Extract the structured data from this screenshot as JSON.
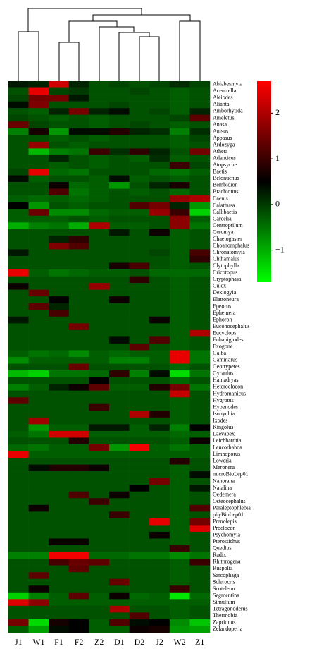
{
  "chart_data": {
    "type": "heatmap",
    "columns": [
      "J1",
      "W1",
      "F1",
      "F2",
      "Z2",
      "D1",
      "D2",
      "J2",
      "W2",
      "Z1"
    ],
    "rows": [
      "Ablabesmyia",
      "Acentrella",
      "Aleiodes",
      "Alianta",
      "Amborhytida",
      "Ameletus",
      "Anasa",
      "Anisus",
      "Appasus",
      "Ardozyga",
      "Atheta",
      "Atlanticus",
      "Atopsyche",
      "Baetis",
      "Belonuchus",
      "Bembidion",
      "Brachionus",
      "Caenis",
      "Calathusa",
      "Callibaetis",
      "Carcelia",
      "Centroptilum",
      "Ceromya",
      "Chaetogaster",
      "Choanomphalus",
      "Chronatomyia",
      "Chthamalus",
      "Clytophylla",
      "Cricotopus",
      "Cryptophasa",
      "Culex",
      "Dexiogyia",
      "Elattoneura",
      "Epeorus",
      "Ephemera",
      "Ephoron",
      "Euconocephalus",
      "Eucyclops",
      "Euhapigiodes",
      "Exogone",
      "Galba",
      "Gammarus",
      "Geotrypetes",
      "Gyraulus",
      "Hamadryas",
      "Heterocloeon",
      "Hydromanicus",
      "Hygrotus",
      "Hypenodes",
      "Isonychia",
      "Ixodes",
      "Kingolus",
      "Laevapex",
      "Leichhardtia",
      "Leucorhabda",
      "Limnoporus",
      "Loweria",
      "Meronera",
      "microBioLep01",
      "Nanorana",
      "Natalina",
      "Oedemera",
      "Osteocephalus",
      "Paraleptophlebia",
      "phyBioLep01",
      "Prenolepis",
      "Procloeon",
      "Psychomyia",
      "Pterostichus",
      "Quedius",
      "Radix",
      "Rhithrogena",
      "Ruspolia",
      "Sarcophaga",
      "Sclerocris",
      "Scoteleon",
      "Segmentina",
      "Simulium",
      "Tetragonoderus",
      "Thermobia",
      "Zaprionus",
      "Zelandoperla"
    ],
    "values": [
      [
        0.3,
        0.2,
        2.3,
        0.2,
        -0.2,
        -0.1,
        -0.2,
        -0.1,
        0.1,
        -0.1
      ],
      [
        -0.2,
        2.5,
        -0.1,
        0,
        -0.2,
        -0.2,
        -0.1,
        -0.2,
        -0.3,
        -0.2
      ],
      [
        -0.1,
        1.5,
        1.5,
        0.3,
        -0.2,
        -0.2,
        -0.2,
        -0.2,
        -0.3,
        -0.2
      ],
      [
        0.4,
        1.6,
        -0.2,
        -0.2,
        -0.2,
        -0.1,
        -0.2,
        -0.2,
        -0.3,
        -0.2
      ],
      [
        -0.2,
        -0.3,
        0.2,
        1.5,
        0.2,
        0.4,
        -0.2,
        -0.1,
        -0.3,
        0.2
      ],
      [
        -0.1,
        -0.2,
        -0.3,
        -0.2,
        -0.3,
        -0.2,
        -0.2,
        -0.2,
        -0.1,
        1.3
      ],
      [
        1.4,
        -0.1,
        -0.2,
        -0.2,
        -0.3,
        -0.2,
        -0.1,
        -0.2,
        -0.3,
        -0.2
      ],
      [
        -0.6,
        0.7,
        -0.8,
        0.4,
        0.4,
        0.8,
        0.2,
        0.1,
        -0.6,
        0.1
      ],
      [
        -0.2,
        -0.2,
        -0.3,
        -0.2,
        -0.3,
        -0.2,
        -0.2,
        -0.2,
        -0.3,
        -0.1
      ],
      [
        -0.2,
        1.8,
        -0.2,
        -0.3,
        -0.2,
        -0.2,
        -0.2,
        -0.2,
        -0.3,
        -0.2
      ],
      [
        -0.2,
        -1.1,
        -0.6,
        -0.5,
        1.0,
        0.1,
        0.9,
        0.2,
        -0.2,
        1.5
      ],
      [
        -0.2,
        -0.2,
        0.2,
        -0.2,
        -0.3,
        -0.2,
        -0.3,
        0.1,
        -0.3,
        -0.2
      ],
      [
        -0.2,
        -0.2,
        -0.3,
        -0.2,
        -0.3,
        -0.2,
        -0.2,
        -0.2,
        1.0,
        -0.1
      ],
      [
        -0.1,
        2.5,
        -0.4,
        -0.5,
        -0.2,
        -0.2,
        -0.2,
        -0.4,
        -0.5,
        -0.3
      ],
      [
        0.4,
        -0.3,
        -0.2,
        -0.2,
        -0.3,
        0.4,
        -0.3,
        -0.2,
        -0.3,
        -0.2
      ],
      [
        -0.2,
        -0.2,
        0.6,
        -0.4,
        -0.3,
        -0.8,
        -0.2,
        0.2,
        0.7,
        -0.2
      ],
      [
        -0.2,
        -0.2,
        1.2,
        -0.5,
        -0.3,
        -0.2,
        -0.3,
        -0.2,
        -0.4,
        -0.2
      ],
      [
        -0.3,
        -0.4,
        -0.3,
        -0.4,
        -0.3,
        -0.2,
        -0.2,
        -0.2,
        1.8,
        2.0
      ],
      [
        0.5,
        -0.8,
        -0.2,
        -0.3,
        -0.2,
        -0.2,
        1.2,
        1.5,
        0.2,
        -0.8
      ],
      [
        -0.3,
        1.4,
        -0.7,
        -0.7,
        -0.4,
        -0.3,
        -0.3,
        1.8,
        1.0,
        -1.3
      ],
      [
        -0.3,
        -0.3,
        -0.3,
        -0.2,
        -0.3,
        -0.2,
        -0.2,
        -0.2,
        1.7,
        -0.3
      ],
      [
        -1.0,
        -0.6,
        -0.5,
        -1.0,
        2.0,
        -0.3,
        -0.3,
        -0.2,
        1.7,
        -0.5
      ],
      [
        -0.2,
        -0.2,
        -0.2,
        -0.2,
        -0.2,
        0.3,
        -0.2,
        0.6,
        -0.3,
        -0.2
      ],
      [
        -0.2,
        -0.2,
        0.2,
        0.9,
        -0.2,
        -0.2,
        -0.2,
        -0.2,
        -0.3,
        -0.2
      ],
      [
        -0.2,
        -0.2,
        1.6,
        1.2,
        -0.2,
        -0.2,
        -0.2,
        -0.2,
        -0.3,
        -0.2
      ],
      [
        0.3,
        -0.2,
        -0.2,
        -0.2,
        -0.2,
        -0.2,
        -0.2,
        -0.1,
        -0.3,
        1.1
      ],
      [
        -0.2,
        -0.2,
        -0.2,
        -0.2,
        -0.2,
        -0.2,
        -0.2,
        -0.2,
        -0.3,
        0.9
      ],
      [
        -0.2,
        -0.2,
        -0.2,
        -0.2,
        -0.2,
        0.7,
        1.1,
        -0.2,
        -0.3,
        -0.2
      ],
      [
        2.5,
        -0.3,
        -0.5,
        -0.4,
        -0.3,
        -0.3,
        -0.2,
        -0.4,
        -0.4,
        -0.4
      ],
      [
        -0.2,
        -0.2,
        -0.2,
        -0.2,
        -0.2,
        -0.2,
        0.9,
        -0.2,
        -0.3,
        -0.2
      ],
      [
        0.6,
        -0.2,
        -0.2,
        -0.2,
        1.8,
        -0.2,
        -0.2,
        -0.2,
        -0.3,
        -0.2
      ],
      [
        -0.2,
        1.4,
        -0.2,
        -0.2,
        -0.2,
        -0.2,
        -0.2,
        -0.2,
        -0.3,
        -0.2
      ],
      [
        -0.2,
        -0.2,
        0.5,
        -0.2,
        -0.2,
        0.6,
        -0.2,
        -0.2,
        -0.3,
        -0.2
      ],
      [
        -0.2,
        1.3,
        0.2,
        -0.2,
        -0.2,
        -0.2,
        -0.2,
        -0.2,
        -0.3,
        -0.2
      ],
      [
        -0.2,
        -0.2,
        1.1,
        -0.2,
        -0.2,
        -0.2,
        -0.2,
        -0.2,
        -0.3,
        -0.2
      ],
      [
        0.3,
        -0.2,
        -0.2,
        -0.2,
        -0.2,
        -0.2,
        -0.2,
        0.6,
        -0.3,
        -0.2
      ],
      [
        -0.2,
        -0.2,
        -0.2,
        1.5,
        -0.2,
        -0.2,
        -0.2,
        -0.2,
        -0.3,
        -0.2
      ],
      [
        -0.2,
        -0.2,
        -0.2,
        -0.2,
        -0.2,
        -0.2,
        -0.2,
        -0.2,
        -0.3,
        2.0
      ],
      [
        -0.2,
        -0.2,
        -0.2,
        -0.2,
        -0.2,
        0.4,
        -0.2,
        1.2,
        -0.3,
        -0.2
      ],
      [
        -0.2,
        -0.2,
        -0.2,
        -0.2,
        -0.2,
        -0.2,
        1.3,
        -0.2,
        -0.3,
        -0.2
      ],
      [
        -0.3,
        -0.5,
        -0.4,
        -0.7,
        -0.3,
        -0.4,
        -0.3,
        -0.3,
        2.5,
        -0.5
      ],
      [
        -0.7,
        -0.3,
        -0.3,
        -0.3,
        -0.3,
        -0.6,
        -0.6,
        -0.3,
        2.5,
        -0.5
      ],
      [
        -0.2,
        -0.2,
        -0.2,
        1.4,
        -0.2,
        -0.2,
        -0.2,
        -0.2,
        -0.4,
        -0.2
      ],
      [
        -1.1,
        -1.3,
        -0.5,
        -0.5,
        -0.4,
        0.9,
        -0.6,
        0.4,
        -1.4,
        -0.5
      ],
      [
        -0.2,
        -0.2,
        -0.2,
        -0.2,
        0.5,
        -0.2,
        -0.2,
        -0.2,
        -0.4,
        -0.2
      ],
      [
        -0.6,
        -0.3,
        0.2,
        0.6,
        1.3,
        -0.3,
        -0.3,
        0.8,
        1.5,
        -0.5
      ],
      [
        -0.2,
        -0.2,
        -0.2,
        -0.2,
        -0.2,
        -0.2,
        -0.2,
        -0.2,
        2.2,
        -0.2
      ],
      [
        1.3,
        -0.2,
        -0.2,
        -0.2,
        -0.2,
        -0.2,
        -0.2,
        -0.2,
        -0.3,
        -0.2
      ],
      [
        -0.2,
        -0.2,
        -0.2,
        -0.2,
        1.0,
        -0.2,
        -0.2,
        -0.2,
        -0.3,
        -0.2
      ],
      [
        -0.2,
        -0.2,
        -0.2,
        -0.2,
        -0.2,
        -0.2,
        2.0,
        0.8,
        -0.3,
        -0.2
      ],
      [
        -0.2,
        1.9,
        -0.2,
        -0.2,
        -0.2,
        -0.2,
        -0.2,
        -0.2,
        -0.3,
        -0.2
      ],
      [
        -0.2,
        -0.8,
        -0.3,
        -0.3,
        0.3,
        0.3,
        -0.3,
        0.2,
        -0.6,
        0.5
      ],
      [
        -0.3,
        -0.5,
        2.3,
        2.3,
        -0.3,
        -0.3,
        -0.3,
        -0.3,
        -0.4,
        -0.3
      ],
      [
        -0.2,
        -0.2,
        -0.2,
        0.8,
        -0.2,
        -0.2,
        -0.2,
        -0.2,
        -0.3,
        0.6
      ],
      [
        -0.4,
        -0.5,
        -0.3,
        -0.3,
        1.5,
        -0.8,
        2.6,
        -0.3,
        -0.5,
        -0.3
      ],
      [
        2.5,
        -0.3,
        -0.3,
        -0.3,
        -0.3,
        -0.3,
        -0.3,
        -0.3,
        -0.3,
        -0.3
      ],
      [
        -0.2,
        -0.2,
        -0.2,
        -0.2,
        -0.2,
        -0.2,
        -0.2,
        -0.2,
        0.8,
        -0.2
      ],
      [
        -0.2,
        0.4,
        0.8,
        0.8,
        0.6,
        -0.2,
        -0.2,
        -0.2,
        -0.3,
        -0.2
      ],
      [
        -0.2,
        -0.2,
        -0.2,
        -0.2,
        -0.2,
        -0.2,
        -0.2,
        -0.2,
        -0.3,
        0.4
      ],
      [
        -0.2,
        -0.2,
        -0.2,
        -0.2,
        -0.2,
        -0.2,
        -0.2,
        1.5,
        -0.3,
        -0.2
      ],
      [
        -0.2,
        -0.2,
        -0.2,
        -0.2,
        -0.2,
        -0.2,
        0.5,
        -0.2,
        -0.3,
        0.3
      ],
      [
        -0.2,
        -0.2,
        -0.2,
        1.2,
        -0.2,
        0.6,
        -0.2,
        -0.2,
        -0.3,
        -0.2
      ],
      [
        -0.2,
        -0.2,
        -0.2,
        -0.2,
        1.0,
        -0.2,
        -0.2,
        -0.2,
        -0.3,
        -0.2
      ],
      [
        -0.2,
        0.6,
        -0.2,
        -0.2,
        -0.2,
        -0.2,
        -0.2,
        -0.2,
        -0.3,
        1.2
      ],
      [
        -0.2,
        -0.2,
        -0.2,
        -0.2,
        -0.2,
        1.0,
        -0.2,
        -0.2,
        -0.3,
        -0.2
      ],
      [
        -0.2,
        -0.2,
        -0.2,
        -0.2,
        -0.2,
        -0.2,
        -0.2,
        2.5,
        -0.3,
        1.5
      ],
      [
        -0.2,
        -0.2,
        -0.2,
        -0.2,
        -0.2,
        -0.2,
        -0.2,
        -0.2,
        -0.3,
        2.4
      ],
      [
        -0.2,
        -0.2,
        -0.2,
        -0.2,
        -0.2,
        -0.2,
        -0.2,
        0.6,
        -0.3,
        -0.2
      ],
      [
        -0.2,
        -0.2,
        0.6,
        0.6,
        -0.2,
        -0.2,
        -0.2,
        -0.2,
        -0.3,
        -0.2
      ],
      [
        -0.2,
        -0.2,
        -0.2,
        -0.2,
        -0.2,
        -0.2,
        -0.2,
        -0.2,
        1.0,
        -0.2
      ],
      [
        -0.6,
        -0.6,
        2.6,
        2.6,
        -0.4,
        -0.4,
        -0.5,
        -0.5,
        -0.7,
        -0.5
      ],
      [
        -0.2,
        -0.2,
        1.1,
        1.4,
        1.3,
        -0.2,
        -0.2,
        -0.2,
        -0.3,
        1.0
      ],
      [
        -0.2,
        -0.2,
        -0.2,
        1.3,
        -0.2,
        -0.2,
        -0.2,
        -0.2,
        -0.3,
        -0.2
      ],
      [
        -0.2,
        1.3,
        -0.2,
        -0.2,
        -0.2,
        -0.2,
        -0.2,
        -0.2,
        -0.3,
        -0.2
      ],
      [
        -0.2,
        -0.2,
        -0.2,
        -0.2,
        -0.2,
        1.4,
        -0.2,
        -0.2,
        -0.3,
        -0.2
      ],
      [
        -0.2,
        0.6,
        -0.2,
        -0.2,
        -0.2,
        -0.2,
        -0.2,
        -0.2,
        1.0,
        -0.2
      ],
      [
        -1.3,
        -0.6,
        -0.3,
        1.3,
        -0.3,
        0.6,
        -0.4,
        -0.3,
        -1.5,
        -0.4
      ],
      [
        2.4,
        1.7,
        -0.3,
        -0.3,
        -0.3,
        -0.3,
        -0.3,
        -0.3,
        -0.3,
        -0.3
      ],
      [
        -0.2,
        -0.2,
        -0.2,
        -0.2,
        -0.2,
        2.0,
        -0.2,
        -0.2,
        -0.3,
        -0.2
      ],
      [
        -0.2,
        -0.2,
        -0.2,
        -0.2,
        -0.2,
        -0.2,
        1.2,
        -0.2,
        -0.3,
        -0.2
      ],
      [
        1.5,
        -1.4,
        0.7,
        0.5,
        -0.3,
        1.2,
        0.4,
        0.5,
        -0.7,
        -1.2
      ],
      [
        -0.3,
        -0.9,
        0.4,
        0.5,
        -0.3,
        -0.3,
        0.6,
        0.7,
        -0.8,
        -0.9
      ]
    ],
    "zlim": [
      -1.7,
      2.7
    ],
    "zticks": [
      2,
      1,
      0,
      {
        "value": -1,
        "label": "−1"
      }
    ],
    "colors": [
      "#00ff00",
      "#000000",
      "#ff0000"
    ]
  }
}
